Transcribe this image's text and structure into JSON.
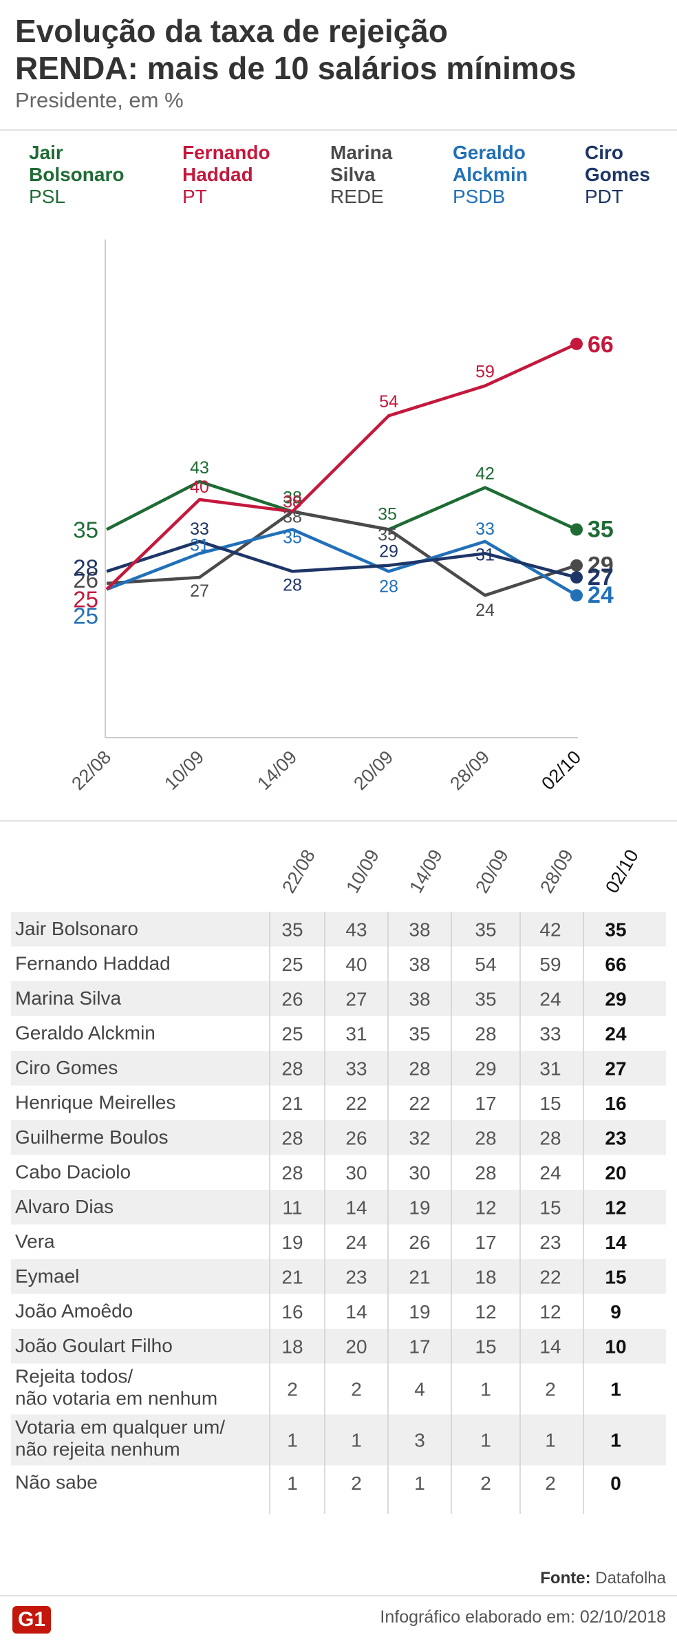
{
  "header": {
    "title_line1": "Evolução da taxa de rejeição",
    "title_line2": "RENDA: mais de 10 salários mínimos",
    "subtitle": "Presidente, em %"
  },
  "legend": [
    {
      "name_line1": "Jair",
      "name_line2": "Bolsonaro",
      "party": "PSL",
      "color": "#1e6b34"
    },
    {
      "name_line1": "Fernando",
      "name_line2": "Haddad",
      "party": "PT",
      "color": "#c4183c"
    },
    {
      "name_line1": "Marina",
      "name_line2": "Silva",
      "party": "REDE",
      "color": "#4a4a4a"
    },
    {
      "name_line1": "Geraldo",
      "name_line2": "Alckmin",
      "party": "PSDB",
      "color": "#2170b8"
    },
    {
      "name_line1": "Ciro",
      "name_line2": "Gomes",
      "party": "PDT",
      "color": "#1d3567"
    }
  ],
  "chart_data": {
    "type": "line",
    "x": [
      "22/08",
      "10/09",
      "14/09",
      "20/09",
      "28/09",
      "02/10"
    ],
    "ylim": [
      0,
      73
    ],
    "series": [
      {
        "name": "Jair Bolsonaro",
        "color": "#1e6b34",
        "values": [
          35,
          43,
          38,
          35,
          42,
          35
        ]
      },
      {
        "name": "Fernando Haddad",
        "color": "#c4183c",
        "values": [
          25,
          40,
          38,
          54,
          59,
          66
        ]
      },
      {
        "name": "Marina Silva",
        "color": "#4a4a4a",
        "values": [
          26,
          27,
          38,
          35,
          24,
          29
        ]
      },
      {
        "name": "Geraldo Alckmin",
        "color": "#2170b8",
        "values": [
          25,
          31,
          35,
          28,
          33,
          24
        ]
      },
      {
        "name": "Ciro Gomes",
        "color": "#1d3567",
        "values": [
          28,
          33,
          28,
          29,
          31,
          27
        ]
      }
    ]
  },
  "table": {
    "columns": [
      "22/08",
      "10/09",
      "14/09",
      "20/09",
      "28/09",
      "02/10"
    ],
    "rows": [
      {
        "label": [
          "Jair Bolsonaro"
        ],
        "values": [
          "35",
          "43",
          "38",
          "35",
          "42",
          "35"
        ]
      },
      {
        "label": [
          "Fernando Haddad"
        ],
        "values": [
          "25",
          "40",
          "38",
          "54",
          "59",
          "66"
        ]
      },
      {
        "label": [
          "Marina Silva"
        ],
        "values": [
          "26",
          "27",
          "38",
          "35",
          "24",
          "29"
        ]
      },
      {
        "label": [
          "Geraldo Alckmin"
        ],
        "values": [
          "25",
          "31",
          "35",
          "28",
          "33",
          "24"
        ]
      },
      {
        "label": [
          "Ciro Gomes"
        ],
        "values": [
          "28",
          "33",
          "28",
          "29",
          "31",
          "27"
        ]
      },
      {
        "label": [
          "Henrique Meirelles"
        ],
        "values": [
          "21",
          "22",
          "22",
          "17",
          "15",
          "16"
        ]
      },
      {
        "label": [
          "Guilherme Boulos"
        ],
        "values": [
          "28",
          "26",
          "32",
          "28",
          "28",
          "23"
        ]
      },
      {
        "label": [
          "Cabo Daciolo"
        ],
        "values": [
          "28",
          "30",
          "30",
          "28",
          "24",
          "20"
        ]
      },
      {
        "label": [
          "Alvaro Dias"
        ],
        "values": [
          "11",
          "14",
          "19",
          "12",
          "15",
          "12"
        ]
      },
      {
        "label": [
          "Vera"
        ],
        "values": [
          "19",
          "24",
          "26",
          "17",
          "23",
          "14"
        ]
      },
      {
        "label": [
          "Eymael"
        ],
        "values": [
          "21",
          "23",
          "21",
          "18",
          "22",
          "15"
        ]
      },
      {
        "label": [
          "João Amoêdo"
        ],
        "values": [
          "16",
          "14",
          "19",
          "12",
          "12",
          "9"
        ]
      },
      {
        "label": [
          "João Goulart Filho"
        ],
        "values": [
          "18",
          "20",
          "17",
          "15",
          "14",
          "10"
        ]
      },
      {
        "label": [
          "Rejeita todos/",
          "não votaria em nenhum"
        ],
        "values": [
          "2",
          "2",
          "4",
          "1",
          "2",
          "1"
        ]
      },
      {
        "label": [
          "Votaria em qualquer um/",
          "não rejeita nenhum"
        ],
        "values": [
          "1",
          "1",
          "3",
          "1",
          "1",
          "1"
        ]
      },
      {
        "label": [
          "Não sabe"
        ],
        "values": [
          "1",
          "2",
          "1",
          "2",
          "2",
          "0"
        ]
      }
    ]
  },
  "footer": {
    "source_label": "Fonte:",
    "source_value": "Datafolha",
    "logo": "G1",
    "credit": "Infográfico elaborado em: 02/10/2018"
  }
}
